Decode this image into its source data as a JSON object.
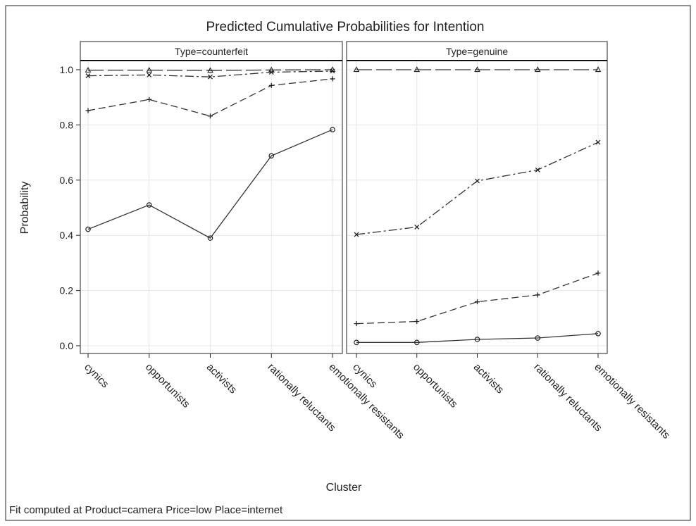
{
  "chart_data": {
    "type": "line",
    "title": "Predicted Cumulative Probabilities for Intention",
    "xlabel": "Cluster",
    "ylabel": "Probability",
    "ylim": [
      0,
      1.1
    ],
    "yticks": [
      "0.0",
      "0.2",
      "0.4",
      "0.6",
      "0.8",
      "1.0"
    ],
    "grid": true,
    "categories": [
      "cynics",
      "opportunists",
      "activists",
      "rationally reluctants",
      "emotionally resistants"
    ],
    "footnote": "Fit computed at Product=camera Price=low Place=internet",
    "panels": [
      {
        "label": "Type=counterfeit",
        "series": [
          {
            "marker": "circle",
            "dash": "solid",
            "values": [
              0.422,
              0.51,
              0.39,
              0.688,
              0.783
            ]
          },
          {
            "marker": "plus",
            "dash": "dash",
            "values": [
              0.852,
              0.892,
              0.832,
              0.943,
              0.967
            ]
          },
          {
            "marker": "x",
            "dash": "dashdot",
            "values": [
              0.978,
              0.981,
              0.974,
              0.991,
              0.995
            ]
          },
          {
            "marker": "triangle",
            "dash": "longdash",
            "values": [
              0.998,
              0.998,
              0.997,
              0.999,
              1.0
            ]
          }
        ]
      },
      {
        "label": "Type=genuine",
        "series": [
          {
            "marker": "circle",
            "dash": "solid",
            "values": [
              0.012,
              0.012,
              0.023,
              0.028,
              0.044
            ]
          },
          {
            "marker": "plus",
            "dash": "dash",
            "values": [
              0.08,
              0.088,
              0.159,
              0.184,
              0.263
            ]
          },
          {
            "marker": "x",
            "dash": "dashdot",
            "values": [
              0.403,
              0.43,
              0.597,
              0.637,
              0.737
            ]
          },
          {
            "marker": "triangle",
            "dash": "longdash",
            "values": [
              1.0,
              1.0,
              1.0,
              1.0,
              1.0
            ]
          }
        ]
      }
    ]
  }
}
